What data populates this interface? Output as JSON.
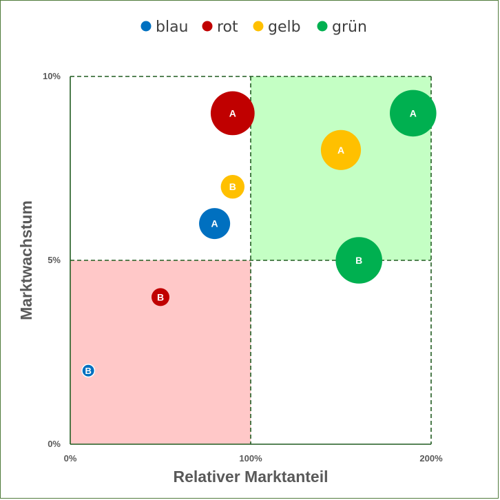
{
  "chart_data": {
    "type": "scatter",
    "subtype": "bubble",
    "xlabel": "Relativer Marktanteil",
    "ylabel": "Marktwachstum",
    "xlim": [
      0,
      200
    ],
    "ylim": [
      0,
      10
    ],
    "x_ticks": [
      {
        "value": 0,
        "label": "0%"
      },
      {
        "value": 100,
        "label": "100%"
      },
      {
        "value": 200,
        "label": "200%"
      }
    ],
    "y_ticks": [
      {
        "value": 0,
        "label": "0%"
      },
      {
        "value": 5,
        "label": "5%"
      },
      {
        "value": 10,
        "label": "10%"
      }
    ],
    "legend_position": "top",
    "quadrants": [
      {
        "x": [
          0,
          100
        ],
        "y": [
          0,
          5
        ],
        "color": "#ffc8c8"
      },
      {
        "x": [
          100,
          200
        ],
        "y": [
          5,
          10
        ],
        "color": "#c4ffc4"
      }
    ],
    "series": [
      {
        "name": "blau",
        "color": "#0070c0",
        "points": [
          {
            "x": 10,
            "y": 2,
            "size": 1,
            "label": "B"
          },
          {
            "x": 80,
            "y": 6,
            "size": 6,
            "label": "A"
          }
        ]
      },
      {
        "name": "rot",
        "color": "#c00000",
        "points": [
          {
            "x": 50,
            "y": 4,
            "size": 2,
            "label": "B"
          },
          {
            "x": 90,
            "y": 9,
            "size": 12,
            "label": "A"
          }
        ]
      },
      {
        "name": "gelb",
        "color": "#ffc000",
        "points": [
          {
            "x": 90,
            "y": 7,
            "size": 3.5,
            "label": "B"
          },
          {
            "x": 150,
            "y": 8,
            "size": 10,
            "label": "A"
          }
        ]
      },
      {
        "name": "grün",
        "color": "#00b050",
        "points": [
          {
            "x": 160,
            "y": 5,
            "size": 13.5,
            "label": "B"
          },
          {
            "x": 190,
            "y": 9,
            "size": 13.5,
            "label": "A"
          }
        ]
      }
    ]
  }
}
